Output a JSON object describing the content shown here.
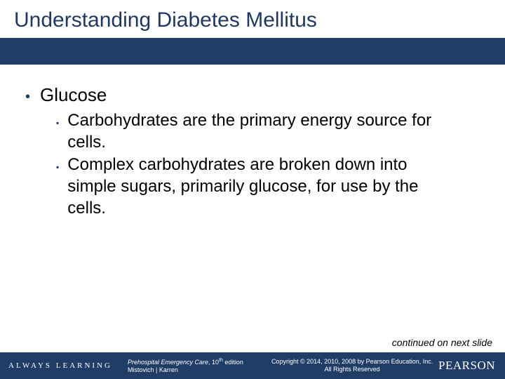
{
  "title": "Understanding Diabetes Mellitus",
  "colors": {
    "brand_dark_blue": "#1f3d66",
    "title_text": "#1f3864",
    "bullet_color": "#1f3864",
    "body_text": "#000000",
    "background": "#ffffff",
    "footer_text": "#ffffff"
  },
  "content": {
    "level1": {
      "bullet_glyph": "•",
      "text": "Glucose"
    },
    "level2": [
      {
        "bullet_glyph": "▪",
        "text": "Carbohydrates are the primary energy source for cells."
      },
      {
        "bullet_glyph": "▪",
        "text": "Complex carbohydrates are broken down into simple sugars, primarily glucose, for use by the cells."
      }
    ]
  },
  "continued_text": "continued on next slide",
  "footer": {
    "always_learning": "ALWAYS LEARNING",
    "book_title_italic": "Prehospital Emergency Care",
    "edition_prefix": ", 10",
    "edition_sup": "th",
    "edition_suffix": " edition",
    "authors": "Mistovich | Karren",
    "copyright_line1": "Copyright © 2014, 2010, 2008 by Pearson Education, Inc.",
    "copyright_line2": "All Rights Reserved",
    "logo": "PEARSON"
  }
}
